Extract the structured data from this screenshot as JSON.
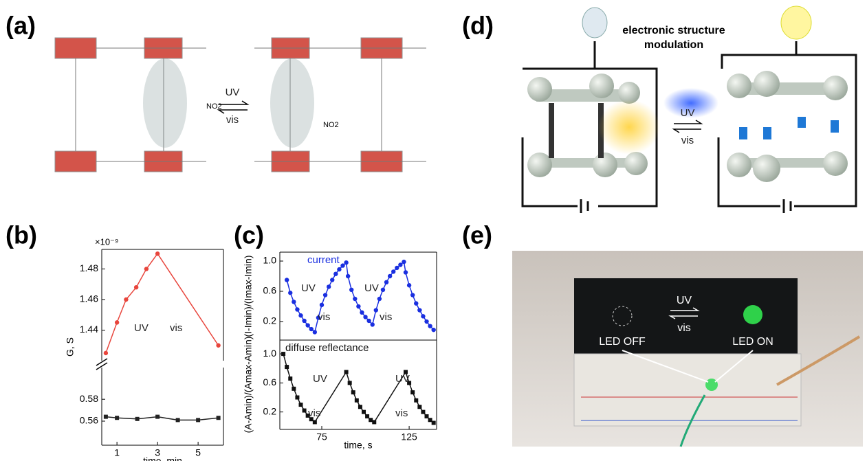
{
  "panels": {
    "a": {
      "label": "(a)",
      "arrow_top": "UV",
      "arrow_bottom": "vis",
      "group_left": "NO2",
      "group_right": "NO2"
    },
    "b": {
      "label": "(b)"
    },
    "c": {
      "label": "(c)"
    },
    "d": {
      "label": "(d)",
      "caption_line1": "electronic structure",
      "caption_line2": "modulation",
      "arrow_top": "UV",
      "arrow_bottom": "vis"
    },
    "e": {
      "label": "(e)",
      "arrow_top": "UV",
      "arrow_bottom": "vis",
      "left_label": "LED OFF",
      "right_label": "LED ON"
    }
  },
  "chart_data": [
    {
      "type": "line",
      "ylabel": "G, S",
      "multiplier": "×10⁻⁹",
      "annotations": [
        "UV",
        "vis"
      ],
      "x": [
        0.45,
        1,
        1.45,
        1.95,
        2.45,
        3,
        6
      ],
      "series": [
        {
          "color": "#e8453c",
          "marker": "circle",
          "values": [
            1.425,
            1.445,
            1.46,
            1.468,
            1.48,
            1.49,
            1.43
          ]
        }
      ],
      "xlim": [
        0.25,
        6.25
      ],
      "ylim": [
        1.42,
        1.4928
      ],
      "yticks": [
        1.44,
        1.46,
        1.48
      ]
    },
    {
      "type": "line",
      "xlabel": "time, min",
      "x": [
        0.45,
        1,
        2,
        3,
        4,
        5,
        6
      ],
      "series": [
        {
          "color": "#222222",
          "marker": "square",
          "values": [
            0.564,
            0.563,
            0.562,
            0.564,
            0.561,
            0.561,
            0.563
          ]
        }
      ],
      "xlim": [
        0.25,
        6.25
      ],
      "ylim": [
        0.538,
        0.609
      ],
      "xticks": [
        1,
        3,
        5
      ],
      "yticks": [
        0.56,
        0.58
      ]
    },
    {
      "type": "line",
      "ylabel": "(I-Imin)/(Imax-Imin)",
      "annotations": [
        "UV",
        "vis",
        "UV",
        "vis"
      ],
      "x": [
        55,
        57,
        59,
        61,
        63,
        65,
        67,
        69,
        71,
        73,
        75,
        77,
        79,
        81,
        83,
        85,
        87,
        89,
        90,
        92,
        94,
        96,
        98,
        100,
        102,
        104,
        106,
        108,
        110,
        112,
        114,
        116,
        118,
        120,
        122,
        123,
        125,
        127,
        129,
        131,
        133,
        135,
        137,
        139
      ],
      "series": [
        {
          "name": "current",
          "color": "#1a2fe0",
          "marker": "circle",
          "values": [
            0.75,
            0.58,
            0.46,
            0.36,
            0.28,
            0.21,
            0.15,
            0.1,
            0.06,
            0.25,
            0.42,
            0.55,
            0.66,
            0.75,
            0.83,
            0.89,
            0.94,
            0.98,
            0.8,
            0.62,
            0.5,
            0.4,
            0.32,
            0.26,
            0.21,
            0.16,
            0.35,
            0.5,
            0.62,
            0.72,
            0.8,
            0.86,
            0.91,
            0.95,
            0.99,
            0.85,
            0.68,
            0.55,
            0.44,
            0.35,
            0.27,
            0.2,
            0.14,
            0.09
          ]
        }
      ],
      "xlim": [
        51,
        140.7
      ],
      "ylim": [
        -0.045,
        1.118
      ],
      "yticks": [
        0.2,
        0.6,
        {
          "value": 1,
          "label": "1.0"
        }
      ]
    },
    {
      "type": "line",
      "ylabel": "(A-Amin)/(Amax-Amin)",
      "xlabel": "time, s",
      "annotations": [
        "UV",
        "vis",
        "UV",
        "vis"
      ],
      "x": [
        53,
        55,
        57,
        59,
        61,
        63,
        65,
        67,
        69,
        71,
        89,
        91,
        93,
        95,
        97,
        99,
        101,
        103,
        105,
        123,
        125,
        127,
        129,
        131,
        133,
        135,
        137,
        139
      ],
      "series": [
        {
          "name": "diffuse reflectance",
          "color": "#111111",
          "marker": "square",
          "values": [
            1.0,
            0.82,
            0.66,
            0.52,
            0.4,
            0.3,
            0.22,
            0.15,
            0.1,
            0.06,
            0.75,
            0.6,
            0.47,
            0.36,
            0.27,
            0.2,
            0.14,
            0.09,
            0.06,
            0.75,
            0.6,
            0.47,
            0.36,
            0.27,
            0.2,
            0.14,
            0.09,
            0.05
          ]
        }
      ],
      "xlim": [
        51,
        140.7
      ],
      "ylim": [
        -0.04,
        1.19
      ],
      "xticks": [
        75,
        125
      ],
      "yticks": [
        0.2,
        0.6,
        {
          "value": 1,
          "label": "1.0"
        }
      ]
    }
  ]
}
